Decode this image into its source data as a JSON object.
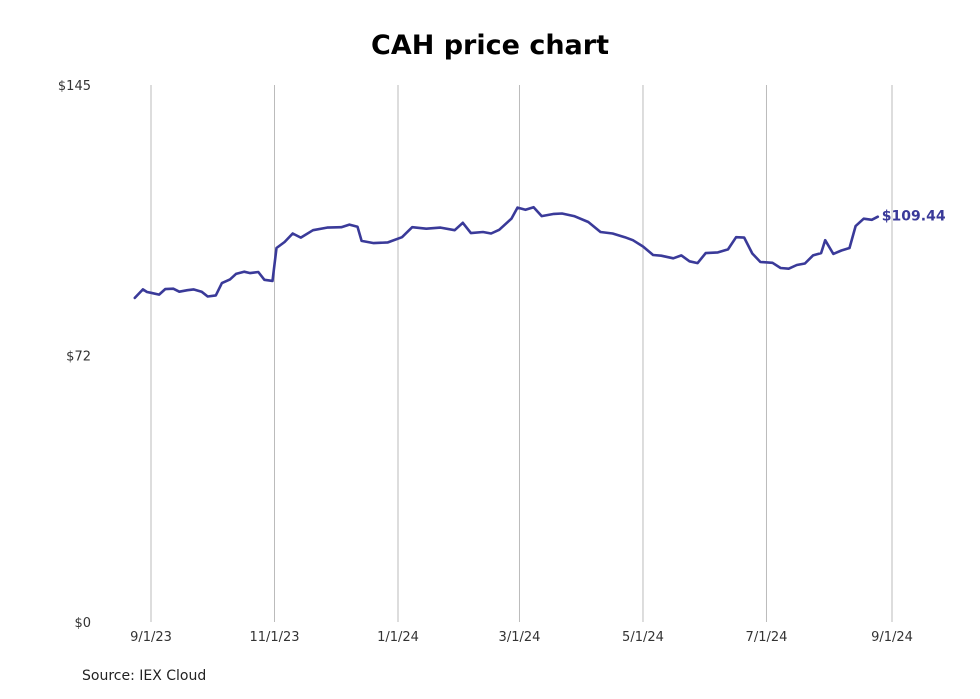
{
  "title": "CAH price chart",
  "source": "Source: IEX Cloud",
  "colors": {
    "line": "#3a3a99",
    "grid": "#bbbbbb",
    "label": "#3a3a99"
  },
  "chart_data": {
    "type": "line",
    "title": "CAH price chart",
    "xlabel": "",
    "ylabel": "",
    "ylim": [
      0,
      145
    ],
    "xlim": [
      "2023-08-27",
      "2024-09-01"
    ],
    "y_ticks": [
      {
        "value": 0,
        "label": "$0"
      },
      {
        "value": 72,
        "label": "$72"
      },
      {
        "value": 145,
        "label": "$145"
      }
    ],
    "x_ticks": [
      {
        "value": "2023-09-01",
        "label": "9/1/23"
      },
      {
        "value": "2023-11-01",
        "label": "11/1/23"
      },
      {
        "value": "2024-01-01",
        "label": "1/1/24"
      },
      {
        "value": "2024-03-01",
        "label": "3/1/24"
      },
      {
        "value": "2024-05-01",
        "label": "5/1/24"
      },
      {
        "value": "2024-07-01",
        "label": "7/1/24"
      },
      {
        "value": "2024-09-01",
        "label": "9/1/24"
      }
    ],
    "grid": "vertical",
    "end_label": "$109.44",
    "series": [
      {
        "values": [
          [
            "2023-08-24",
            87.5
          ],
          [
            "2023-08-28",
            89.8
          ],
          [
            "2023-08-30",
            89.1
          ],
          [
            "2023-09-01",
            88.9
          ],
          [
            "2023-09-05",
            88.4
          ],
          [
            "2023-09-08",
            89.9
          ],
          [
            "2023-09-12",
            90.0
          ],
          [
            "2023-09-15",
            89.2
          ],
          [
            "2023-09-19",
            89.6
          ],
          [
            "2023-09-22",
            89.8
          ],
          [
            "2023-09-26",
            89.2
          ],
          [
            "2023-09-29",
            87.9
          ],
          [
            "2023-10-03",
            88.2
          ],
          [
            "2023-10-06",
            91.5
          ],
          [
            "2023-10-10",
            92.5
          ],
          [
            "2023-10-13",
            94.0
          ],
          [
            "2023-10-17",
            94.6
          ],
          [
            "2023-10-20",
            94.2
          ],
          [
            "2023-10-24",
            94.5
          ],
          [
            "2023-10-27",
            92.4
          ],
          [
            "2023-10-31",
            92.1
          ],
          [
            "2023-11-02",
            101.0
          ],
          [
            "2023-11-06",
            102.6
          ],
          [
            "2023-11-10",
            104.9
          ],
          [
            "2023-11-14",
            103.8
          ],
          [
            "2023-11-20",
            105.8
          ],
          [
            "2023-11-27",
            106.5
          ],
          [
            "2023-12-04",
            106.6
          ],
          [
            "2023-12-08",
            107.3
          ],
          [
            "2023-12-12",
            106.7
          ],
          [
            "2023-12-14",
            102.9
          ],
          [
            "2023-12-20",
            102.3
          ],
          [
            "2023-12-27",
            102.5
          ],
          [
            "2024-01-03",
            103.9
          ],
          [
            "2024-01-08",
            106.6
          ],
          [
            "2024-01-15",
            106.2
          ],
          [
            "2024-01-22",
            106.5
          ],
          [
            "2024-01-29",
            105.8
          ],
          [
            "2024-02-02",
            107.8
          ],
          [
            "2024-02-06",
            105.0
          ],
          [
            "2024-02-12",
            105.3
          ],
          [
            "2024-02-16",
            104.9
          ],
          [
            "2024-02-20",
            105.9
          ],
          [
            "2024-02-26",
            108.9
          ],
          [
            "2024-02-29",
            111.9
          ],
          [
            "2024-03-04",
            111.3
          ],
          [
            "2024-03-08",
            112.0
          ],
          [
            "2024-03-12",
            109.6
          ],
          [
            "2024-03-18",
            110.2
          ],
          [
            "2024-03-22",
            110.3
          ],
          [
            "2024-03-28",
            109.6
          ],
          [
            "2024-04-04",
            108.0
          ],
          [
            "2024-04-10",
            105.3
          ],
          [
            "2024-04-16",
            104.9
          ],
          [
            "2024-04-22",
            103.9
          ],
          [
            "2024-04-26",
            103.1
          ],
          [
            "2024-05-01",
            101.4
          ],
          [
            "2024-05-06",
            99.1
          ],
          [
            "2024-05-10",
            98.9
          ],
          [
            "2024-05-16",
            98.2
          ],
          [
            "2024-05-20",
            99.0
          ],
          [
            "2024-05-24",
            97.4
          ],
          [
            "2024-05-28",
            96.9
          ],
          [
            "2024-06-01",
            99.6
          ],
          [
            "2024-06-07",
            99.8
          ],
          [
            "2024-06-12",
            100.6
          ],
          [
            "2024-06-16",
            103.9
          ],
          [
            "2024-06-20",
            103.8
          ],
          [
            "2024-06-24",
            99.5
          ],
          [
            "2024-06-28",
            97.2
          ],
          [
            "2024-07-04",
            97.0
          ],
          [
            "2024-07-08",
            95.6
          ],
          [
            "2024-07-12",
            95.4
          ],
          [
            "2024-07-16",
            96.4
          ],
          [
            "2024-07-20",
            96.8
          ],
          [
            "2024-07-24",
            99.0
          ],
          [
            "2024-07-28",
            99.6
          ],
          [
            "2024-07-30",
            103.1
          ],
          [
            "2024-08-03",
            99.4
          ],
          [
            "2024-08-07",
            100.3
          ],
          [
            "2024-08-11",
            101.0
          ],
          [
            "2024-08-14",
            106.9
          ],
          [
            "2024-08-18",
            108.9
          ],
          [
            "2024-08-22",
            108.6
          ],
          [
            "2024-08-25",
            109.44
          ]
        ]
      }
    ]
  }
}
